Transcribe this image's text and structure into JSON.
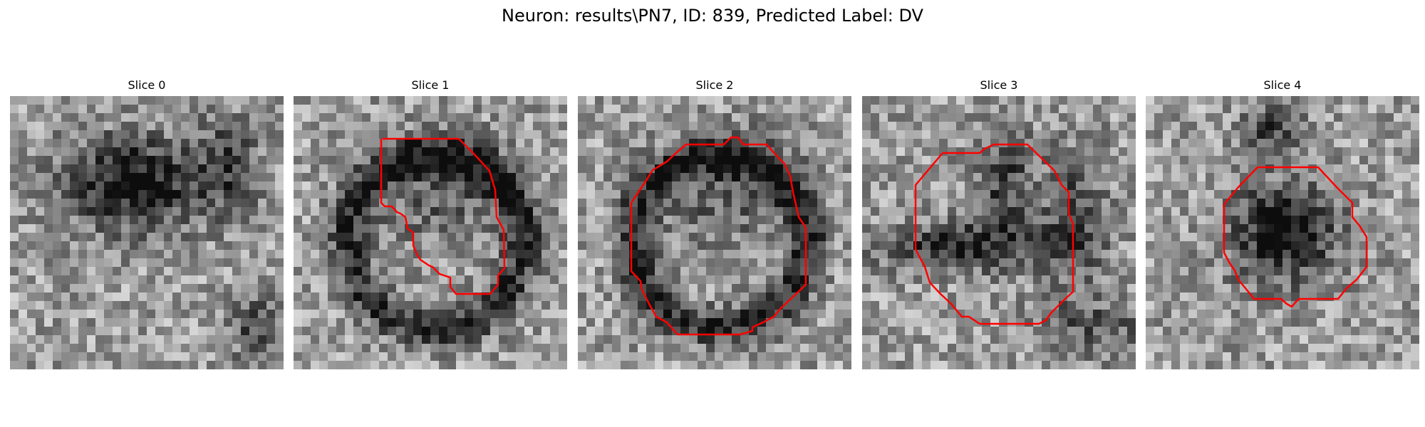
{
  "figure": {
    "title": "Neuron: results\\PN7, ID: 839, Predicted Label: DV"
  },
  "slices": [
    {
      "title": "Slice 0",
      "has_contour": false,
      "seed": 11,
      "dark_blob": "top-center"
    },
    {
      "title": "Slice 1",
      "has_contour": true,
      "seed": 23,
      "dark_blob": "ring"
    },
    {
      "title": "Slice 2",
      "has_contour": true,
      "seed": 37,
      "dark_blob": "ring"
    },
    {
      "title": "Slice 3",
      "has_contour": true,
      "seed": 51,
      "dark_blob": "cross"
    },
    {
      "title": "Slice 4",
      "has_contour": true,
      "seed": 67,
      "dark_blob": "center"
    }
  ],
  "colors": {
    "contour": "#ff0000",
    "colormap": "grayscale"
  }
}
